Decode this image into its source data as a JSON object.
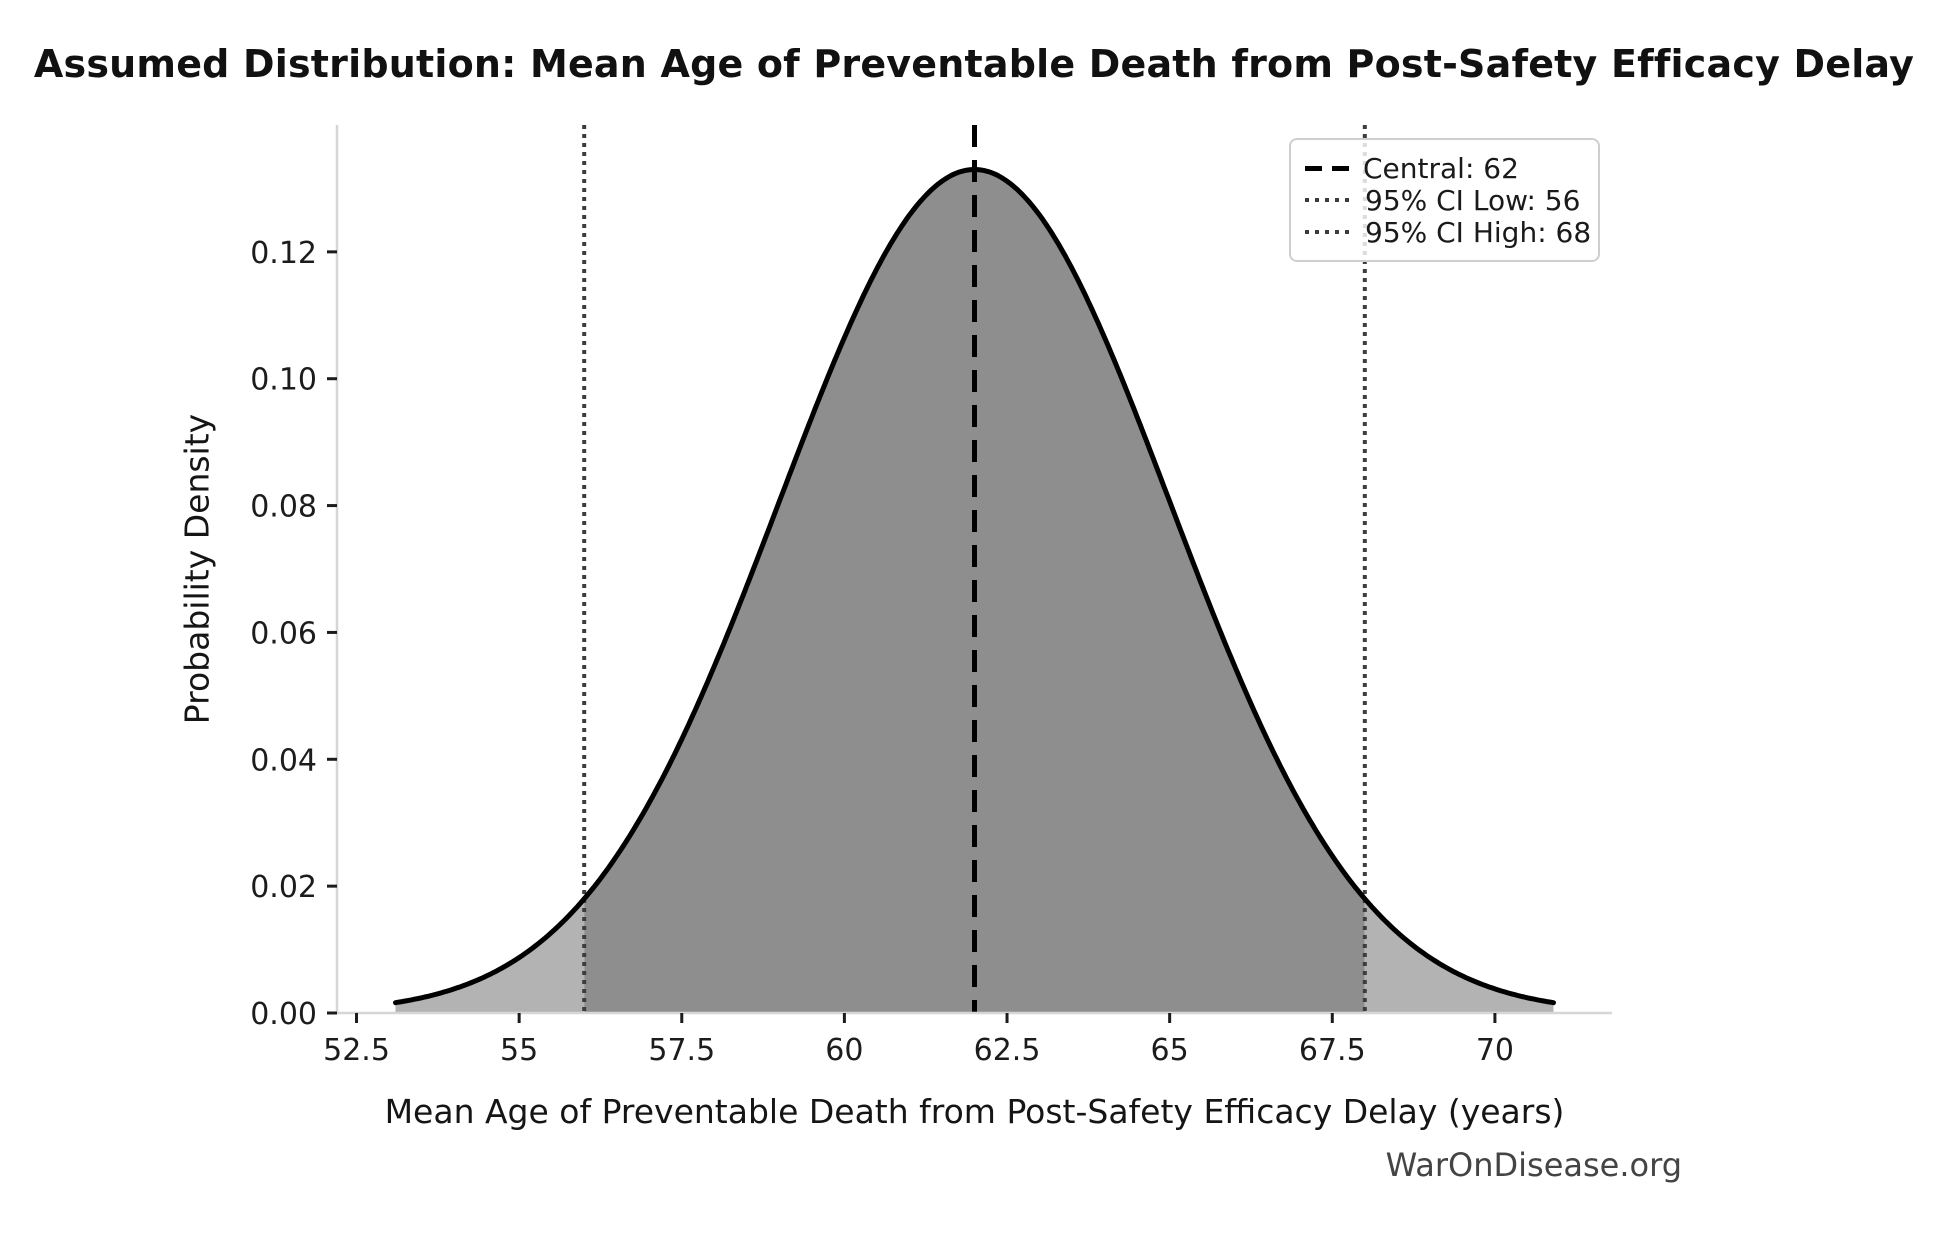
{
  "chart_data": {
    "type": "area",
    "subtype": "normal-distribution-density-curve",
    "title": "Assumed Distribution: Mean Age of Preventable Death from Post-Safety Efficacy Delay",
    "xlabel": "Mean Age of Preventable Death from Post-Safety Efficacy Delay (years)",
    "ylabel": "Probability Density",
    "watermark": "WarOnDisease.org",
    "xlim": [
      52.2,
      71.8
    ],
    "ylim": [
      0,
      0.14
    ],
    "x_ticks": [
      52.5,
      55,
      57.5,
      60,
      62.5,
      65,
      67.5,
      70
    ],
    "x_tick_labels": [
      "52.5",
      "55",
      "57.5",
      "60",
      "62.5",
      "65",
      "67.5",
      "70"
    ],
    "y_ticks": [
      0,
      0.02,
      0.04,
      0.06,
      0.08,
      0.1,
      0.12
    ],
    "y_tick_labels": [
      "0.00",
      "0.02",
      "0.04",
      "0.06",
      "0.08",
      "0.10",
      "0.12"
    ],
    "grid": false,
    "legend_position": "upper right",
    "distribution": {
      "kind": "normal",
      "mean": 62,
      "sigma": 3,
      "peak_density": 0.133,
      "curve_x_min": 53.1,
      "curve_x_max": 70.9
    },
    "markers": {
      "central": 62,
      "ci_level": "95%",
      "ci_low": 56,
      "ci_high": 68
    },
    "series": [
      {
        "name": "probability-density",
        "x": [
          53,
          54,
          55,
          56,
          57,
          58,
          59,
          60,
          61,
          62,
          63,
          64,
          65,
          66,
          67,
          68,
          69,
          70,
          71
        ],
        "y": [
          0.0015,
          0.0038,
          0.0087,
          0.018,
          0.0332,
          0.0547,
          0.0807,
          0.1065,
          0.1258,
          0.133,
          0.1258,
          0.1065,
          0.0807,
          0.0547,
          0.0332,
          0.018,
          0.0087,
          0.0038,
          0.0015
        ]
      }
    ],
    "shaded_regions": [
      {
        "name": "ci-region",
        "from": 56,
        "to": 68,
        "fill": "#8e8e8e"
      },
      {
        "name": "left-tail",
        "from": 53.1,
        "to": 56,
        "fill": "#b3b3b3"
      },
      {
        "name": "right-tail",
        "from": 68,
        "to": 70.9,
        "fill": "#b3b3b3"
      }
    ],
    "legend": [
      {
        "label": "Central: 62",
        "line_style": "dashed",
        "color": "#000000"
      },
      {
        "label": "95% CI Low: 56",
        "line_style": "dotted",
        "color": "#3d3d3d"
      },
      {
        "label": "95% CI High: 68",
        "line_style": "dotted",
        "color": "#3d3d3d"
      }
    ],
    "colors": {
      "curve": "#000000",
      "fill_ci": "#8e8e8e",
      "fill_tail": "#b3b3b3",
      "central_line": "#000000",
      "ci_line": "#3d3d3d",
      "spine": "#d6d6d6",
      "tick": "#1c1c1c",
      "tick_label": "#1c1c1c",
      "text": "#151515",
      "watermark": "#444444",
      "legend_border": "#cfcfcf"
    }
  }
}
